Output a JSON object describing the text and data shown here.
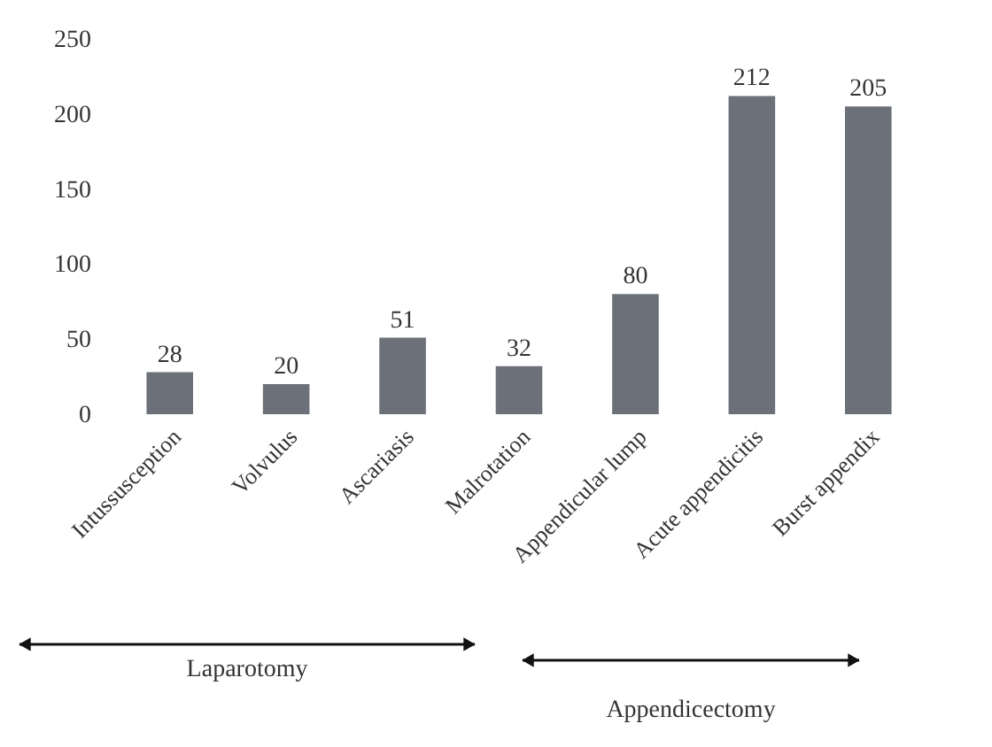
{
  "chart_data": {
    "type": "bar",
    "categories": [
      "Intussusception",
      "Volvulus",
      "Ascariasis",
      "Malrotation",
      "Appendicular lump",
      "Acute appendicitis",
      "Burst appendix"
    ],
    "values": [
      28,
      20,
      51,
      32,
      80,
      212,
      205
    ],
    "color": "#6b7079",
    "ylim": [
      0,
      250
    ],
    "yticks": [
      0,
      50,
      100,
      150,
      200,
      250
    ],
    "grid": false,
    "data_labels": true,
    "annotations": [
      "Laparotomy",
      "Appendicectomy"
    ]
  }
}
